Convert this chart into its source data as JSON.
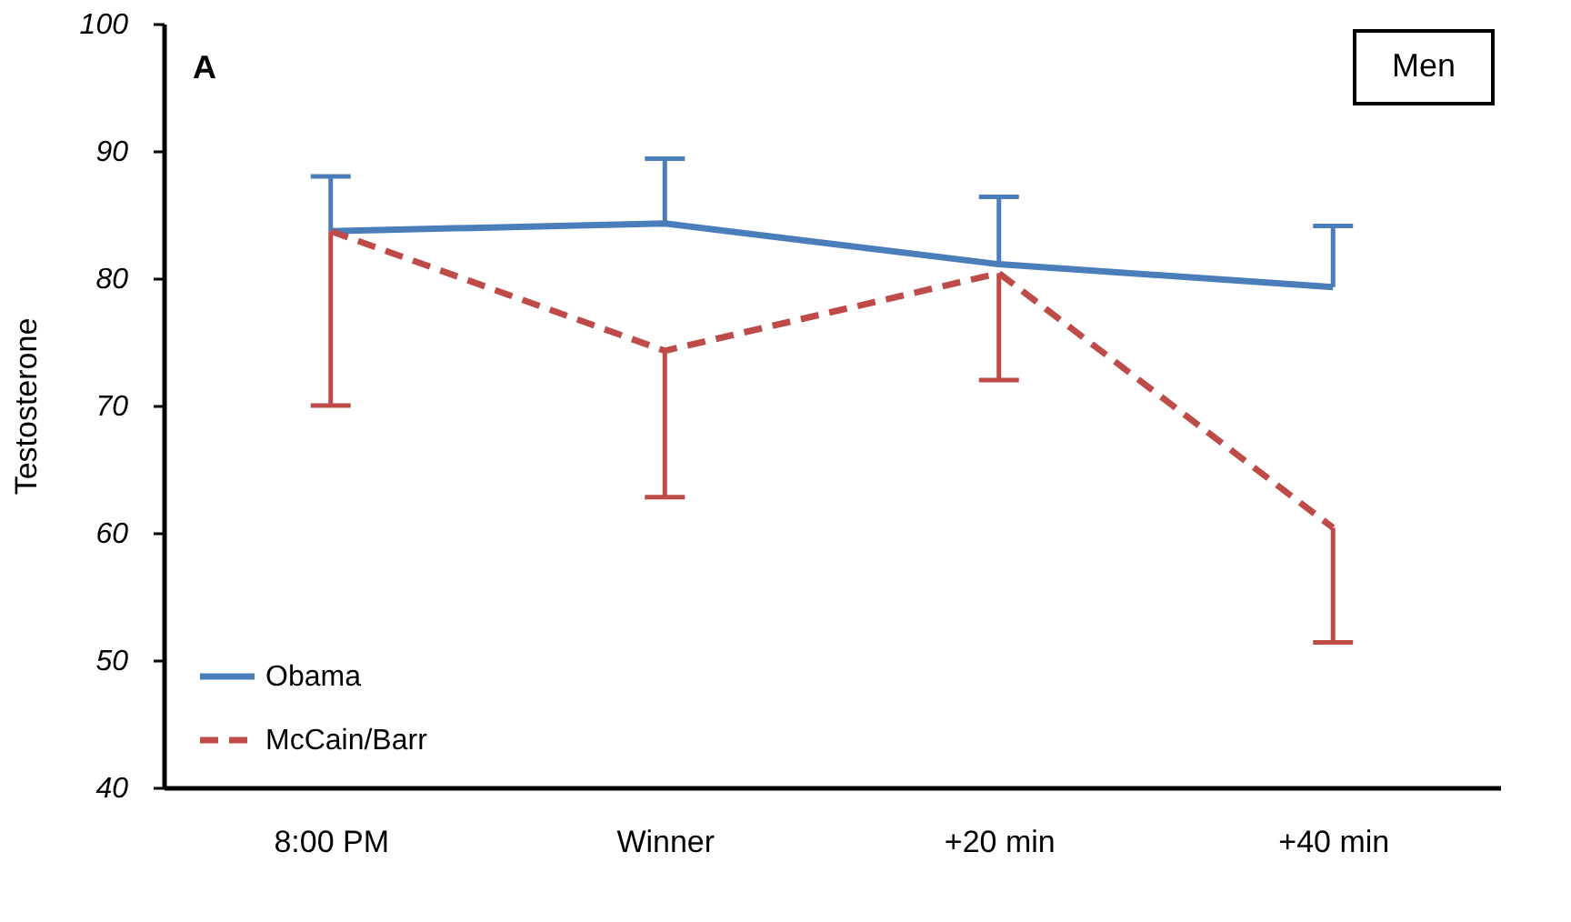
{
  "chart_data": {
    "type": "line",
    "ylabel": "Testosterone",
    "categories": [
      "8:00 PM",
      "Winner",
      "+20 min",
      "+40 min"
    ],
    "series": [
      {
        "name": "Obama",
        "color": "#4a7ebb",
        "line_style": "solid",
        "values": [
          83.7,
          84.3,
          81.1,
          79.3
        ],
        "errors": [
          [
            83.7,
            88
          ],
          [
            84.3,
            89.4
          ],
          [
            81.1,
            86.4
          ],
          [
            79.3,
            84.1
          ]
        ]
      },
      {
        "name": "McCain/Barr",
        "color": "#be4b48",
        "line_style": "dashed",
        "values": [
          83.7,
          74.3,
          80.4,
          60.4
        ],
        "errors": [
          [
            70,
            83.7
          ],
          [
            62.8,
            74.3
          ],
          [
            72,
            80.4
          ],
          [
            51.4,
            60.4
          ]
        ]
      }
    ],
    "ylim": [
      40,
      100
    ],
    "yticks": [
      40,
      50,
      60,
      70,
      80,
      90,
      100
    ],
    "grid": false,
    "marker": "none",
    "legend": "bottom left",
    "annotations": [
      "A",
      "Men"
    ]
  }
}
